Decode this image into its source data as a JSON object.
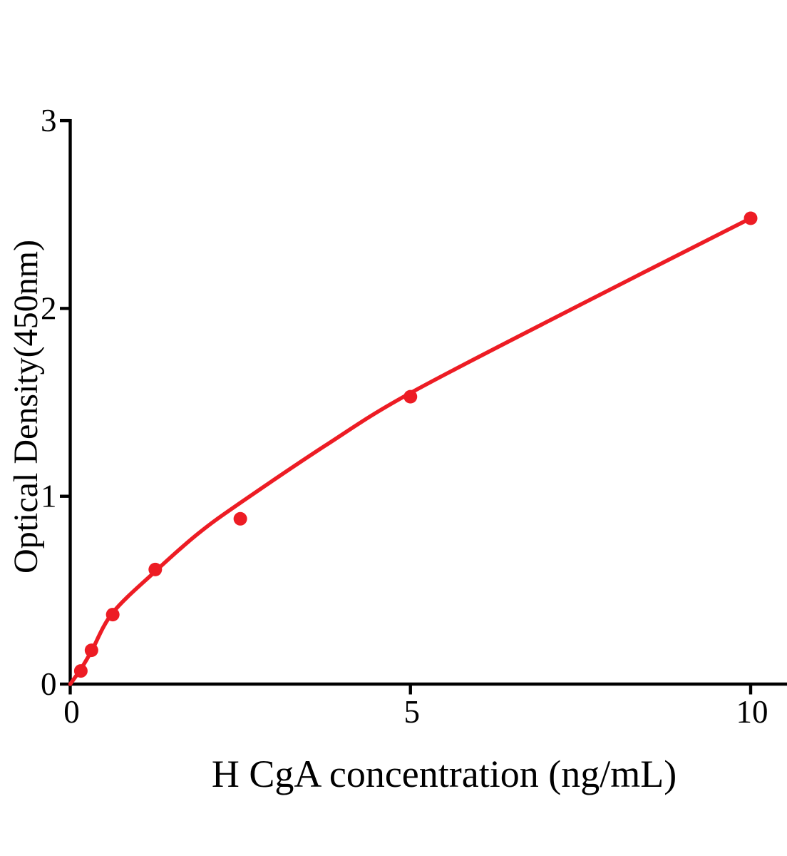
{
  "chart_data": {
    "type": "scatter",
    "title": "",
    "xlabel": "H CgA concentration (ng/mL)",
    "ylabel": "Optical Density(450nm)",
    "x_ticks": [
      0,
      5,
      10
    ],
    "y_ticks": [
      0,
      1,
      2,
      3
    ],
    "xlim": [
      0,
      10.5
    ],
    "ylim": [
      0,
      3
    ],
    "grid": false,
    "legend": "none",
    "marker_color": "#ed1c24",
    "line_color": "#ed1c24",
    "axis_color": "#000000",
    "background_color": "#ffffff",
    "points": {
      "x": [
        0.156,
        0.3125,
        0.625,
        1.25,
        2.5,
        5,
        10
      ],
      "y": [
        0.07,
        0.18,
        0.37,
        0.61,
        0.88,
        1.53,
        2.48
      ]
    },
    "fit_curve_points": [
      [
        0,
        0
      ],
      [
        0.156,
        0.08
      ],
      [
        0.3125,
        0.175
      ],
      [
        0.625,
        0.38
      ],
      [
        1.25,
        0.6
      ],
      [
        1.875,
        0.8
      ],
      [
        2.5,
        0.965
      ],
      [
        3.75,
        1.27
      ],
      [
        5,
        1.55
      ],
      [
        7.5,
        2.02
      ],
      [
        10,
        2.48
      ]
    ]
  }
}
